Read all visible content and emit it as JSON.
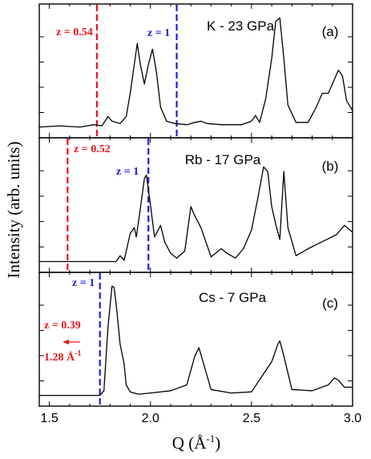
{
  "figure": {
    "xlabel_main": "Q (Å",
    "xlabel_sup": "-1",
    "xlabel_close": ")",
    "ylabel": "Intensity (arb. units)",
    "xlim": [
      1.45,
      3.0
    ],
    "xticks": [
      "1.5",
      "2.0",
      "2.5",
      "3.0"
    ],
    "xtick_values": [
      1.5,
      2.0,
      2.5,
      3.0
    ],
    "colors": {
      "red": "#e8141c",
      "blue": "#1c1ce0",
      "trace": "#000000"
    }
  },
  "chart_data": [
    {
      "type": "line",
      "panel_label": "(a)",
      "sample": "K - 23 GPa",
      "markers": [
        {
          "label": "z = 0.54",
          "q": 1.735,
          "color": "#e8141c"
        },
        {
          "label": "z = 1",
          "q": 2.13,
          "color": "#1c1ce0"
        }
      ],
      "series": [
        {
          "x": [
            1.45,
            1.55,
            1.65,
            1.72,
            1.76,
            1.79,
            1.81,
            1.85,
            1.88,
            1.9,
            1.92,
            1.935,
            1.95,
            1.97,
            1.99,
            2.01,
            2.03,
            2.05,
            2.08,
            2.12,
            2.18,
            2.22,
            2.25,
            2.28,
            2.35,
            2.45,
            2.5,
            2.52,
            2.54,
            2.57,
            2.6,
            2.62,
            2.64,
            2.66,
            2.68,
            2.72,
            2.78,
            2.82,
            2.85,
            2.88,
            2.91,
            2.93,
            2.95,
            2.97,
            3.0
          ],
          "y": [
            0.01,
            0.02,
            0.01,
            0.03,
            0.02,
            0.1,
            0.06,
            0.04,
            0.1,
            0.3,
            0.55,
            0.73,
            0.55,
            0.38,
            0.55,
            0.68,
            0.48,
            0.18,
            0.06,
            0.04,
            0.03,
            0.05,
            0.06,
            0.04,
            0.03,
            0.03,
            0.06,
            0.11,
            0.05,
            0.25,
            0.6,
            0.92,
            0.95,
            0.6,
            0.2,
            0.05,
            0.05,
            0.18,
            0.3,
            0.3,
            0.42,
            0.5,
            0.45,
            0.24,
            0.15
          ]
        }
      ]
    },
    {
      "type": "line",
      "panel_label": "(b)",
      "sample": "Rb - 17 GPa",
      "markers": [
        {
          "label": "z = 0.52",
          "q": 1.59,
          "color": "#e8141c"
        },
        {
          "label": "z = 1",
          "q": 1.99,
          "color": "#1c1ce0"
        }
      ],
      "series": [
        {
          "x": [
            1.45,
            1.65,
            1.78,
            1.83,
            1.85,
            1.87,
            1.9,
            1.92,
            1.93,
            1.95,
            1.97,
            1.98,
            2.0,
            2.02,
            2.05,
            2.07,
            2.1,
            2.13,
            2.17,
            2.2,
            2.22,
            2.25,
            2.3,
            2.35,
            2.38,
            2.42,
            2.46,
            2.5,
            2.53,
            2.56,
            2.58,
            2.6,
            2.62,
            2.64,
            2.66,
            2.68,
            2.72,
            2.78,
            2.85,
            2.92,
            2.96,
            3.0
          ],
          "y": [
            0.01,
            0.01,
            0.01,
            0.01,
            0.06,
            0.02,
            0.25,
            0.3,
            0.22,
            0.46,
            0.72,
            0.75,
            0.5,
            0.22,
            0.32,
            0.18,
            0.08,
            0.04,
            0.1,
            0.48,
            0.4,
            0.3,
            0.05,
            0.12,
            0.08,
            0.04,
            0.12,
            0.28,
            0.54,
            0.82,
            0.78,
            0.48,
            0.33,
            0.2,
            0.78,
            0.3,
            0.06,
            0.12,
            0.18,
            0.24,
            0.32,
            0.26
          ]
        }
      ]
    },
    {
      "type": "line",
      "panel_label": "(c)",
      "sample": "Cs - 7 GPa",
      "markers": [
        {
          "label": "z = 1",
          "q": 1.75,
          "color": "#1c1ce0"
        }
      ],
      "annotations": [
        {
          "label": "z = 0.39",
          "color": "#e8141c"
        },
        {
          "label": "1.28 Å",
          "sup": "-1",
          "color": "#e8141c"
        }
      ],
      "series": [
        {
          "x": [
            1.45,
            1.7,
            1.75,
            1.77,
            1.79,
            1.81,
            1.82,
            1.83,
            1.85,
            1.87,
            1.88,
            1.9,
            1.94,
            2.0,
            2.1,
            2.18,
            2.22,
            2.24,
            2.26,
            2.3,
            2.4,
            2.5,
            2.6,
            2.63,
            2.64,
            2.66,
            2.7,
            2.8,
            2.88,
            2.91,
            2.93,
            2.96,
            3.0
          ],
          "y": [
            0.01,
            0.01,
            0.01,
            0.05,
            0.6,
            0.95,
            0.94,
            0.8,
            0.45,
            0.28,
            0.1,
            0.04,
            0.02,
            0.03,
            0.05,
            0.1,
            0.35,
            0.42,
            0.3,
            0.06,
            0.03,
            0.04,
            0.3,
            0.45,
            0.48,
            0.35,
            0.06,
            0.05,
            0.1,
            0.16,
            0.14,
            0.08,
            0.08
          ]
        }
      ]
    }
  ]
}
